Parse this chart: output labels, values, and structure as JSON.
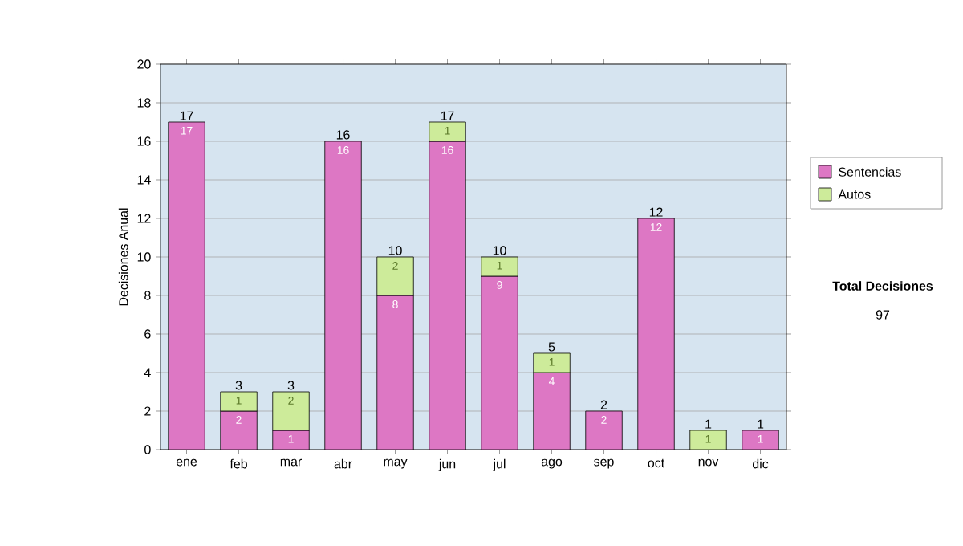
{
  "chart_data": {
    "type": "bar",
    "stacked": true,
    "ylabel": "Decisiones Anual",
    "categories": [
      "ene",
      "feb",
      "mar",
      "abr",
      "may",
      "jun",
      "jul",
      "ago",
      "sep",
      "oct",
      "nov",
      "dic"
    ],
    "series": [
      {
        "name": "Sentencias",
        "color": "#dd77c4",
        "values": [
          17,
          2,
          1,
          16,
          8,
          16,
          9,
          4,
          2,
          12,
          null,
          1
        ]
      },
      {
        "name": "Autos",
        "color": "#cdeb9a",
        "values": [
          null,
          1,
          2,
          null,
          2,
          1,
          1,
          1,
          null,
          null,
          1,
          null
        ]
      }
    ],
    "totals": [
      "17",
      "3",
      "3",
      "16",
      "10",
      "17",
      "10",
      "5",
      "2",
      "12",
      "1",
      "1"
    ],
    "data_labels": true,
    "ylim": [
      0,
      20
    ],
    "yticks": [
      0,
      2,
      4,
      6,
      8,
      10,
      12,
      14,
      16,
      18,
      20
    ],
    "grid": "y",
    "legend": "right",
    "annotations": [
      "Total Decisiones",
      "97"
    ]
  }
}
